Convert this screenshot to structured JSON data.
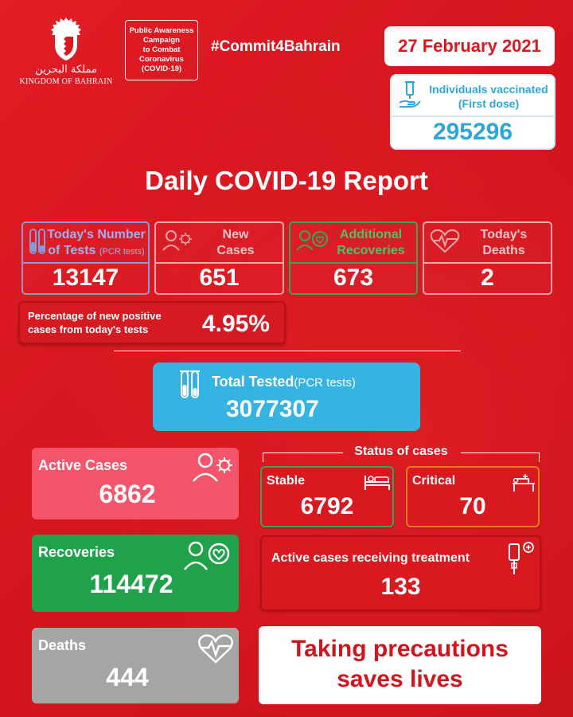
{
  "header": {
    "logo_arabic": "مملكة البحرين",
    "logo_text": "KINGDOM OF BAHRAIN",
    "campaign_lines": [
      "Public Awareness",
      "Campaign",
      "to Combat",
      "Coronavirus",
      "(COVID-19)"
    ],
    "hashtag": "#Commit4Bahrain",
    "date": "27 February 2021"
  },
  "vaccination": {
    "label_line1": "Individuals vaccinated",
    "label_line2": "(First dose)",
    "value": "295296",
    "icon": "vaccine-hand-icon"
  },
  "title": "Daily COVID-19 Report",
  "daily": {
    "tests": {
      "label_line1": "Today's Number",
      "label_line2": "of Tests",
      "label_note": "(PCR tests)",
      "value": "13147",
      "icon": "test-tubes-icon"
    },
    "new_cases": {
      "label_line1": "New",
      "label_line2": "Cases",
      "value": "651",
      "icon": "person-virus-icon"
    },
    "recoveries": {
      "label_line1": "Additional",
      "label_line2": "Recoveries",
      "value": "673",
      "icon": "person-heart-icon"
    },
    "deaths": {
      "label_line1": "Today's",
      "label_line2": "Deaths",
      "value": "2",
      "icon": "heartbeat-icon"
    }
  },
  "percentage": {
    "label_line1": "Percentage of new positive",
    "label_line2": "cases from today's tests",
    "value": "4.95%"
  },
  "total_tested": {
    "label": "Total Tested",
    "note": "(PCR tests)",
    "value": "3077307",
    "icon": "test-tubes-icon"
  },
  "active_cases": {
    "label": "Active Cases",
    "value": "6862",
    "icon": "person-virus-icon"
  },
  "recoveries_total": {
    "label": "Recoveries",
    "value": "114472",
    "icon": "person-heart-icon"
  },
  "deaths_total": {
    "label": "Deaths",
    "value": "444",
    "icon": "heartbeat-icon"
  },
  "status": {
    "title": "Status of cases",
    "stable": {
      "label": "Stable",
      "value": "6792",
      "icon": "bed-icon"
    },
    "critical": {
      "label": "Critical",
      "value": "70",
      "icon": "hospital-bed-icon"
    },
    "treatment": {
      "label": "Active cases receiving treatment",
      "value": "133",
      "icon": "iv-drip-icon"
    }
  },
  "precaution": {
    "line1": "Taking precautions",
    "line2": "saves lives"
  },
  "colors": {
    "background": "#d91820",
    "tests_border": "#8a9ad8",
    "recovery_border": "#3ea35a",
    "critical_border": "#f47a1f",
    "stable_border": "#3ea35a",
    "active_card": "#f3566a",
    "recoveries_card": "#1fa24a",
    "deaths_card": "#a5a5a5",
    "tested_card": "#35b4e4",
    "vaccine_text": "#2ea6d9"
  }
}
